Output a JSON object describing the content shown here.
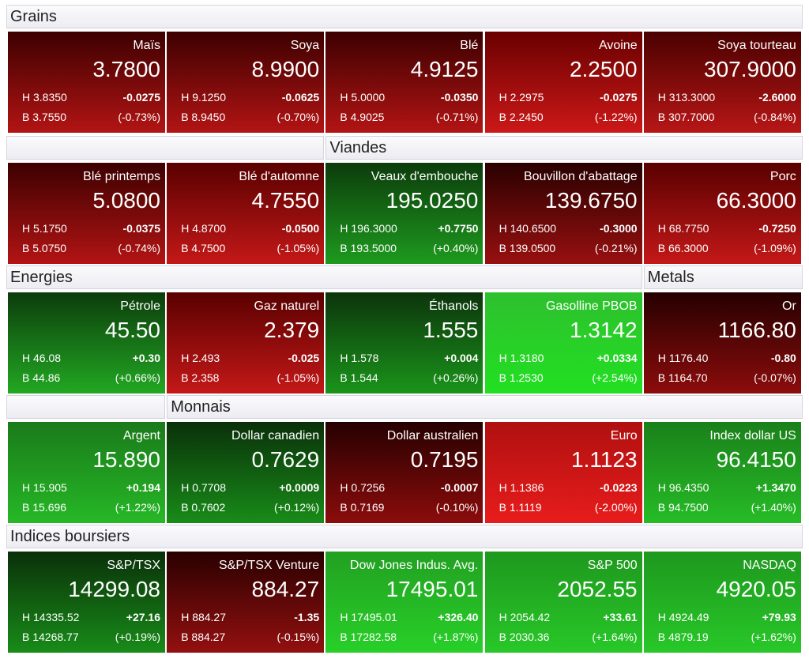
{
  "sections": [
    {
      "headers": [
        "Grains"
      ],
      "tiles": [
        {
          "name": "Maïs",
          "last": "3.7800",
          "high": "H 3.8350",
          "low": "B 3.7550",
          "change": "-0.0275",
          "percent": "(-0.73%)",
          "colors": [
            "#3d0000",
            "#b31414"
          ]
        },
        {
          "name": "Soya",
          "last": "8.9900",
          "high": "H 9.1250",
          "low": "B 8.9450",
          "change": "-0.0625",
          "percent": "(-0.70%)",
          "colors": [
            "#3d0000",
            "#b31414"
          ]
        },
        {
          "name": "Blé",
          "last": "4.9125",
          "high": "H 5.0000",
          "low": "B 4.9025",
          "change": "-0.0350",
          "percent": "(-0.71%)",
          "colors": [
            "#3d0000",
            "#b31414"
          ]
        },
        {
          "name": "Avoine",
          "last": "2.2500",
          "high": "H 2.2975",
          "low": "B 2.2450",
          "change": "-0.0275",
          "percent": "(-1.22%)",
          "colors": [
            "#6a0000",
            "#cc1818"
          ]
        },
        {
          "name": "Soya tourteau",
          "last": "307.9000",
          "high": "H 313.3000",
          "low": "B 307.7000",
          "change": "-2.6000",
          "percent": "(-0.84%)",
          "colors": [
            "#4a0000",
            "#b81616"
          ]
        }
      ]
    },
    {
      "headers": [
        "Viandes"
      ],
      "tiles": [
        {
          "name": "Blé printemps",
          "last": "5.0800",
          "high": "H 5.1750",
          "low": "B 5.0750",
          "change": "-0.0375",
          "percent": "(-0.74%)",
          "colors": [
            "#3d0000",
            "#b31414"
          ]
        },
        {
          "name": "Blé d'automne",
          "last": "4.7550",
          "high": "H 4.8700",
          "low": "B 4.7500",
          "change": "-0.0500",
          "percent": "(-1.05%)",
          "colors": [
            "#5a0000",
            "#c41818"
          ]
        },
        {
          "name": "Veaux d'embouche",
          "last": "195.0250",
          "high": "H 196.3000",
          "low": "B 193.5000",
          "change": "+0.7750",
          "percent": "(+0.40%)",
          "colors": [
            "#0c3c0c",
            "#1e9a1e"
          ]
        },
        {
          "name": "Bouvillon d'abattage",
          "last": "139.6750",
          "high": "H 140.6500",
          "low": "B 139.0500",
          "change": "-0.3000",
          "percent": "(-0.21%)",
          "colors": [
            "#2a0000",
            "#981010"
          ]
        },
        {
          "name": "Porc",
          "last": "66.3000",
          "high": "H 68.7750",
          "low": "B 66.3000",
          "change": "-0.7250",
          "percent": "(-1.09%)",
          "colors": [
            "#5a0000",
            "#c41818"
          ]
        }
      ]
    },
    {
      "headers": [
        "Energies",
        "Metals"
      ],
      "tiles": [
        {
          "name": "Pétrole",
          "last": "45.50",
          "high": "H 46.08",
          "low": "B 44.86",
          "change": "+0.30",
          "percent": "(+0.66%)",
          "colors": [
            "#0c3c0c",
            "#22a822"
          ]
        },
        {
          "name": "Gaz naturel",
          "last": "2.379",
          "high": "H 2.493",
          "low": "B 2.358",
          "change": "-0.025",
          "percent": "(-1.05%)",
          "colors": [
            "#5a0000",
            "#c41818"
          ]
        },
        {
          "name": "Éthanols",
          "last": "1.555",
          "high": "H 1.578",
          "low": "B 1.544",
          "change": "+0.004",
          "percent": "(+0.26%)",
          "colors": [
            "#0c340c",
            "#1a941a"
          ]
        },
        {
          "name": "Gasolline PBOB",
          "last": "1.3142",
          "high": "H 1.3180",
          "low": "B 1.2530",
          "change": "+0.0334",
          "percent": "(+2.54%)",
          "colors": [
            "#2ec02e",
            "#22e022"
          ]
        },
        {
          "name": "Or",
          "last": "1166.80",
          "high": "H 1176.40",
          "low": "B 1164.70",
          "change": "-0.80",
          "percent": "(-0.07%)",
          "colors": [
            "#260000",
            "#8c0c0c"
          ]
        }
      ]
    },
    {
      "headers": [
        "Monnais"
      ],
      "tiles": [
        {
          "name": "Argent",
          "last": "15.890",
          "high": "H 15.905",
          "low": "B 15.696",
          "change": "+0.194",
          "percent": "(+1.22%)",
          "colors": [
            "#1a7a1a",
            "#26b826"
          ]
        },
        {
          "name": "Dollar canadien",
          "last": "0.7629",
          "high": "H 0.7708",
          "low": "B 0.7602",
          "change": "+0.0009",
          "percent": "(+0.12%)",
          "colors": [
            "#0a300a",
            "#188c18"
          ]
        },
        {
          "name": "Dollar australien",
          "last": "0.7195",
          "high": "H 0.7256",
          "low": "B 0.7169",
          "change": "-0.0007",
          "percent": "(-0.10%)",
          "colors": [
            "#260000",
            "#8c0c0c"
          ]
        },
        {
          "name": "Euro",
          "last": "1.1123",
          "high": "H 1.1386",
          "low": "B 1.1119",
          "change": "-0.0223",
          "percent": "(-2.00%)",
          "colors": [
            "#b01010",
            "#e81c1c"
          ]
        },
        {
          "name": "Index dollar US",
          "last": "96.4150",
          "high": "H 96.4350",
          "low": "B 94.7500",
          "change": "+1.3470",
          "percent": "(+1.40%)",
          "colors": [
            "#1a801a",
            "#26bc26"
          ]
        }
      ]
    },
    {
      "headers": [
        "Indices boursiers"
      ],
      "tiles": [
        {
          "name": "S&P/TSX",
          "last": "14299.08",
          "high": "H 14335.52",
          "low": "B 14268.77",
          "change": "+27.16",
          "percent": "(+0.19%)",
          "colors": [
            "#0a300a",
            "#188c18"
          ]
        },
        {
          "name": "S&P/TSX Venture",
          "last": "884.27",
          "high": "H 884.27",
          "low": "B 884.27",
          "change": "-1.35",
          "percent": "(-0.15%)",
          "colors": [
            "#2a0000",
            "#941010"
          ]
        },
        {
          "name": "Dow Jones Indus. Avg.",
          "last": "17495.01",
          "high": "H 17495.01",
          "low": "B 17282.58",
          "change": "+326.40",
          "percent": "(+1.87%)",
          "colors": [
            "#22a022",
            "#28d028"
          ]
        },
        {
          "name": "S&P 500",
          "last": "2052.55",
          "high": "H 2054.42",
          "low": "B 2030.36",
          "change": "+33.61",
          "percent": "(+1.64%)",
          "colors": [
            "#1e981e",
            "#28c828"
          ]
        },
        {
          "name": "NASDAQ",
          "last": "4920.05",
          "high": "H 4924.49",
          "low": "B 4879.19",
          "change": "+79.93",
          "percent": "(+1.62%)",
          "colors": [
            "#1e981e",
            "#28c828"
          ]
        }
      ]
    }
  ]
}
